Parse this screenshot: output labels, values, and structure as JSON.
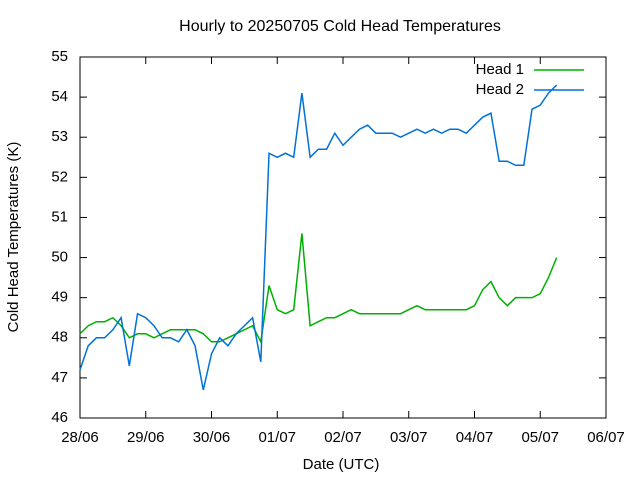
{
  "chart_data": {
    "type": "line",
    "title": "Hourly to 20250705 Cold Head Temperatures",
    "x_label": "Date (UTC)",
    "y_label": "Cold Head Temperatures (K)",
    "legend": "top-right",
    "xlim": [
      0,
      8
    ],
    "xticks": [
      {
        "value": 0,
        "label": "28/06"
      },
      {
        "value": 1,
        "label": "29/06"
      },
      {
        "value": 2,
        "label": "30/06"
      },
      {
        "value": 3,
        "label": "01/07"
      },
      {
        "value": 4,
        "label": "02/07"
      },
      {
        "value": 5,
        "label": "03/07"
      },
      {
        "value": 6,
        "label": "04/07"
      },
      {
        "value": 7,
        "label": "05/07"
      },
      {
        "value": 8,
        "label": "06/07"
      }
    ],
    "ylim": [
      46,
      55
    ],
    "yticks": [
      46,
      47,
      48,
      49,
      50,
      51,
      52,
      53,
      54,
      55
    ],
    "x": [
      0,
      0.125,
      0.25,
      0.375,
      0.5,
      0.625,
      0.75,
      0.875,
      1,
      1.125,
      1.25,
      1.375,
      1.5,
      1.625,
      1.75,
      1.875,
      2,
      2.125,
      2.25,
      2.375,
      2.5,
      2.625,
      2.75,
      2.875,
      3,
      3.125,
      3.25,
      3.375,
      3.5,
      3.625,
      3.75,
      3.875,
      4,
      4.125,
      4.25,
      4.375,
      4.5,
      4.625,
      4.75,
      4.875,
      5,
      5.125,
      5.25,
      5.375,
      5.5,
      5.625,
      5.75,
      5.875,
      6,
      6.125,
      6.25,
      6.375,
      6.5,
      6.625,
      6.75,
      6.875,
      7,
      7.125,
      7.25
    ],
    "series": [
      {
        "name": "Head 1",
        "color": "#00b000",
        "values": [
          48.1,
          48.3,
          48.4,
          48.4,
          48.5,
          48.3,
          48.0,
          48.1,
          48.1,
          48.0,
          48.1,
          48.2,
          48.2,
          48.2,
          48.2,
          48.1,
          47.9,
          47.9,
          48.0,
          48.1,
          48.2,
          48.3,
          47.9,
          49.3,
          48.7,
          48.6,
          48.7,
          50.6,
          48.3,
          48.4,
          48.5,
          48.5,
          48.6,
          48.7,
          48.6,
          48.6,
          48.6,
          48.6,
          48.6,
          48.6,
          48.7,
          48.8,
          48.7,
          48.7,
          48.7,
          48.7,
          48.7,
          48.7,
          48.8,
          49.2,
          49.4,
          49.0,
          48.8,
          49.0,
          49.0,
          49.0,
          49.1,
          49.5,
          50.0
        ]
      },
      {
        "name": "Head 2",
        "color": "#0072d6",
        "values": [
          47.2,
          47.8,
          48.0,
          48.0,
          48.2,
          48.5,
          47.3,
          48.6,
          48.5,
          48.3,
          48.0,
          48.0,
          47.9,
          48.2,
          47.8,
          46.7,
          47.6,
          48.0,
          47.8,
          48.1,
          48.3,
          48.5,
          47.4,
          52.6,
          52.5,
          52.6,
          52.5,
          54.1,
          52.5,
          52.7,
          52.7,
          53.1,
          52.8,
          53.0,
          53.2,
          53.3,
          53.1,
          53.1,
          53.1,
          53.0,
          53.1,
          53.2,
          53.1,
          53.2,
          53.1,
          53.2,
          53.2,
          53.1,
          53.3,
          53.5,
          53.6,
          52.4,
          52.4,
          52.3,
          52.3,
          53.7,
          53.8,
          54.1,
          54.3
        ]
      }
    ]
  }
}
